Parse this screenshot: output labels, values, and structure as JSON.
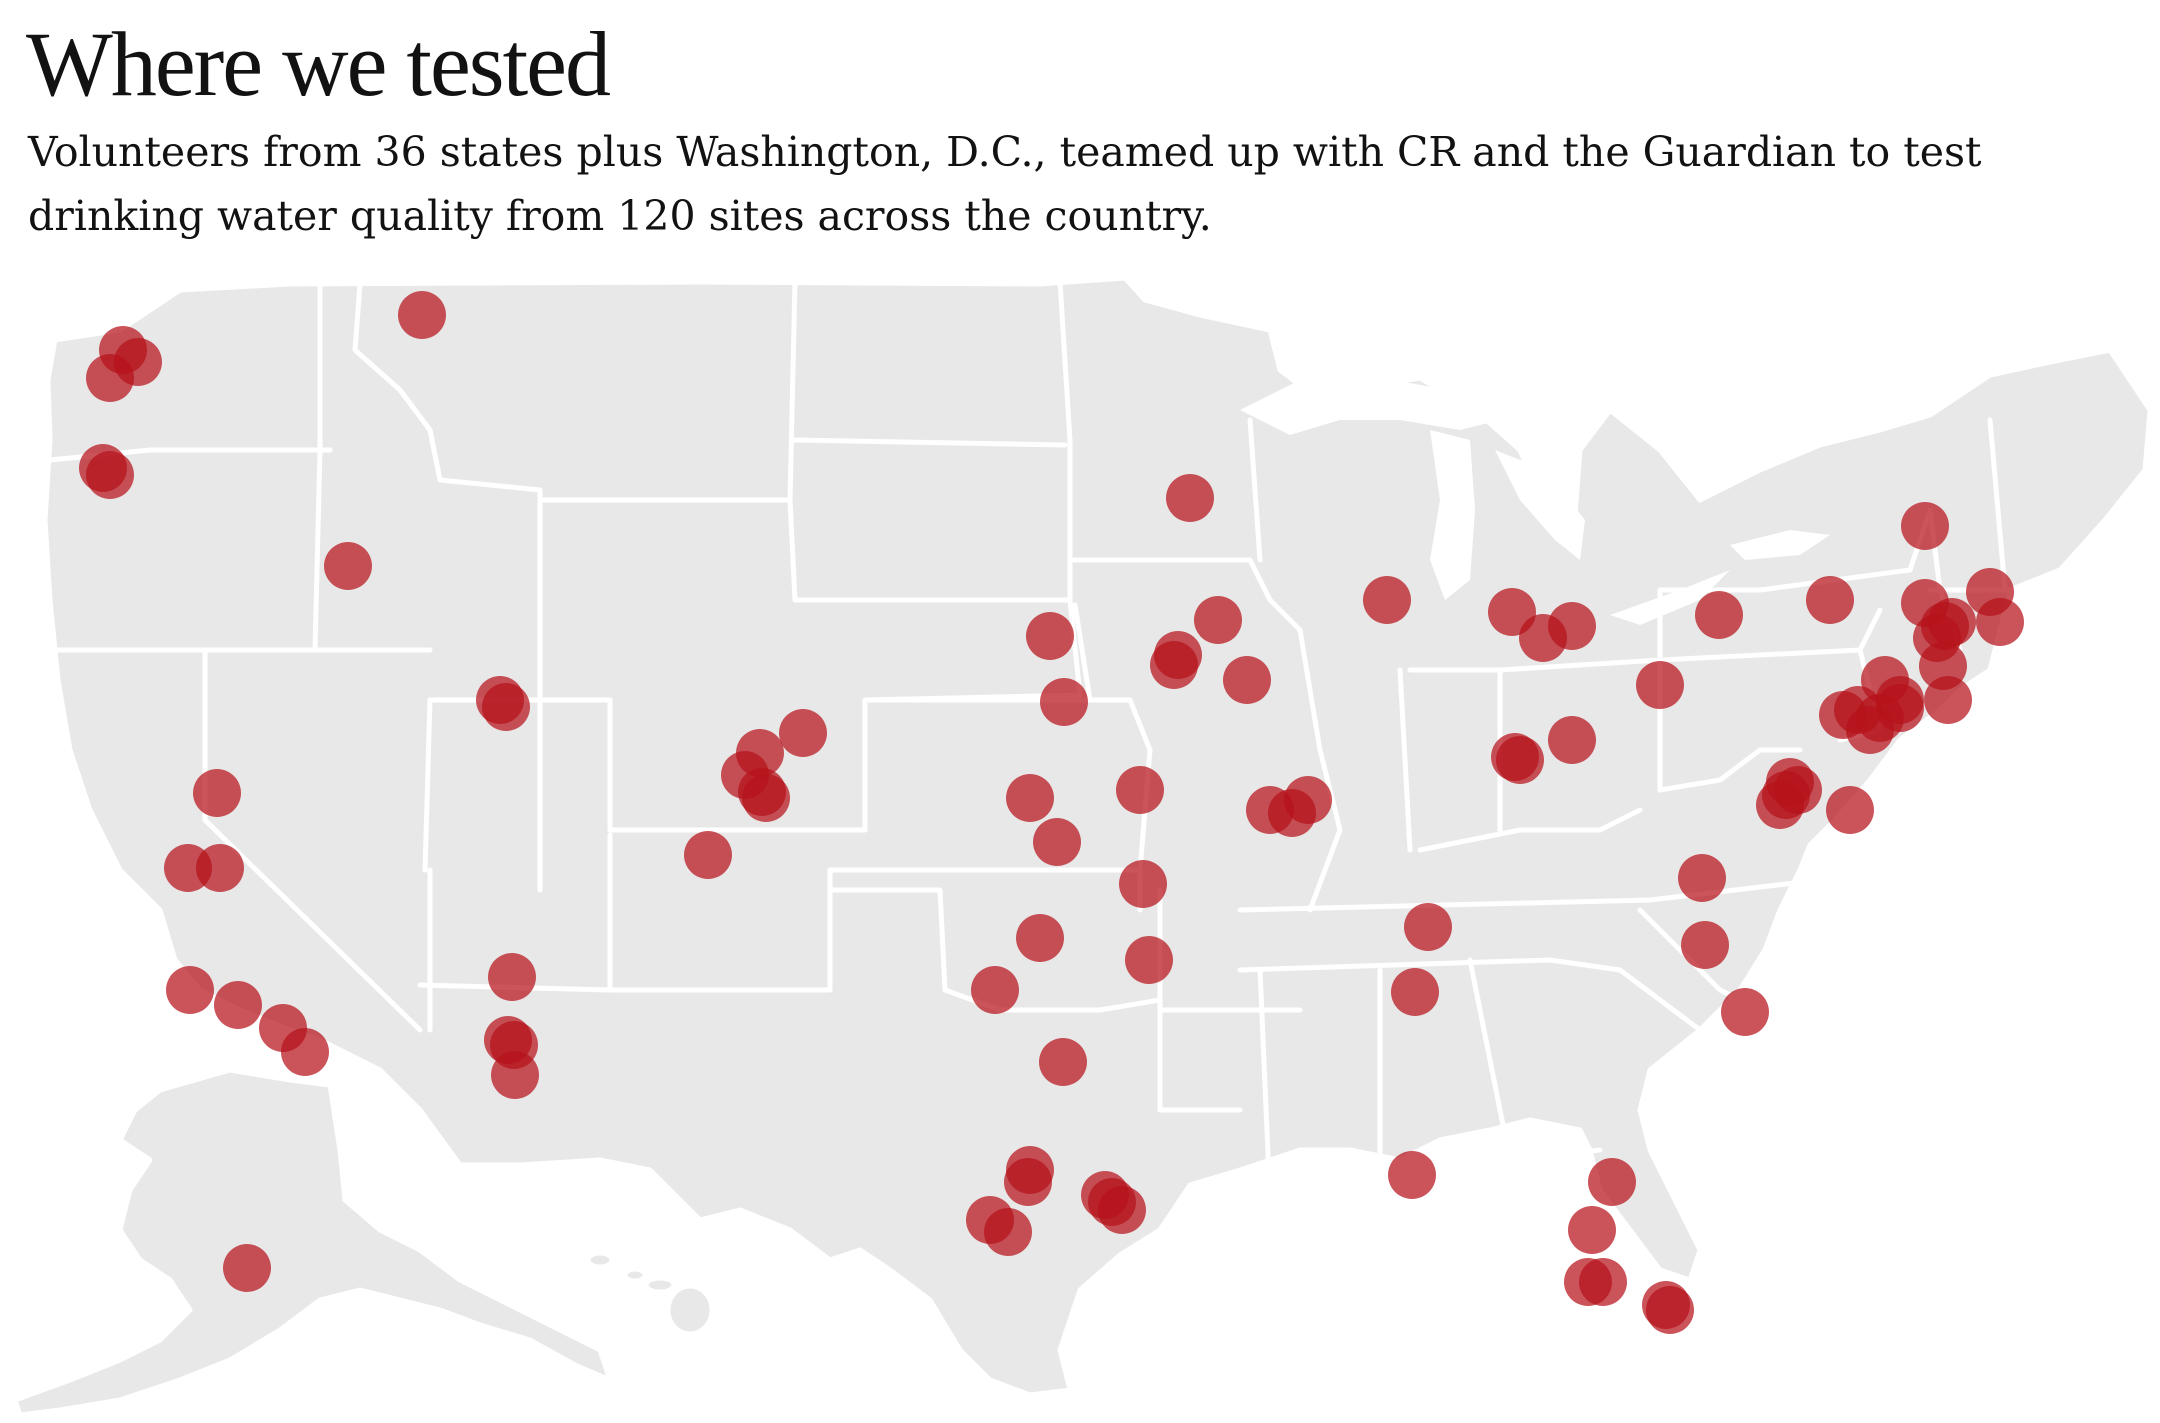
{
  "header": {
    "title": "Where we tested",
    "subtitle": "Volunteers from 36 states plus Washington, D.C., teamed up with CR and the Guardian to test drinking water quality from 120 sites across the country."
  },
  "map": {
    "region": "United States",
    "marker_color": "#b6121b",
    "land_color": "#e8e8e8",
    "border_color": "#ffffff"
  }
}
